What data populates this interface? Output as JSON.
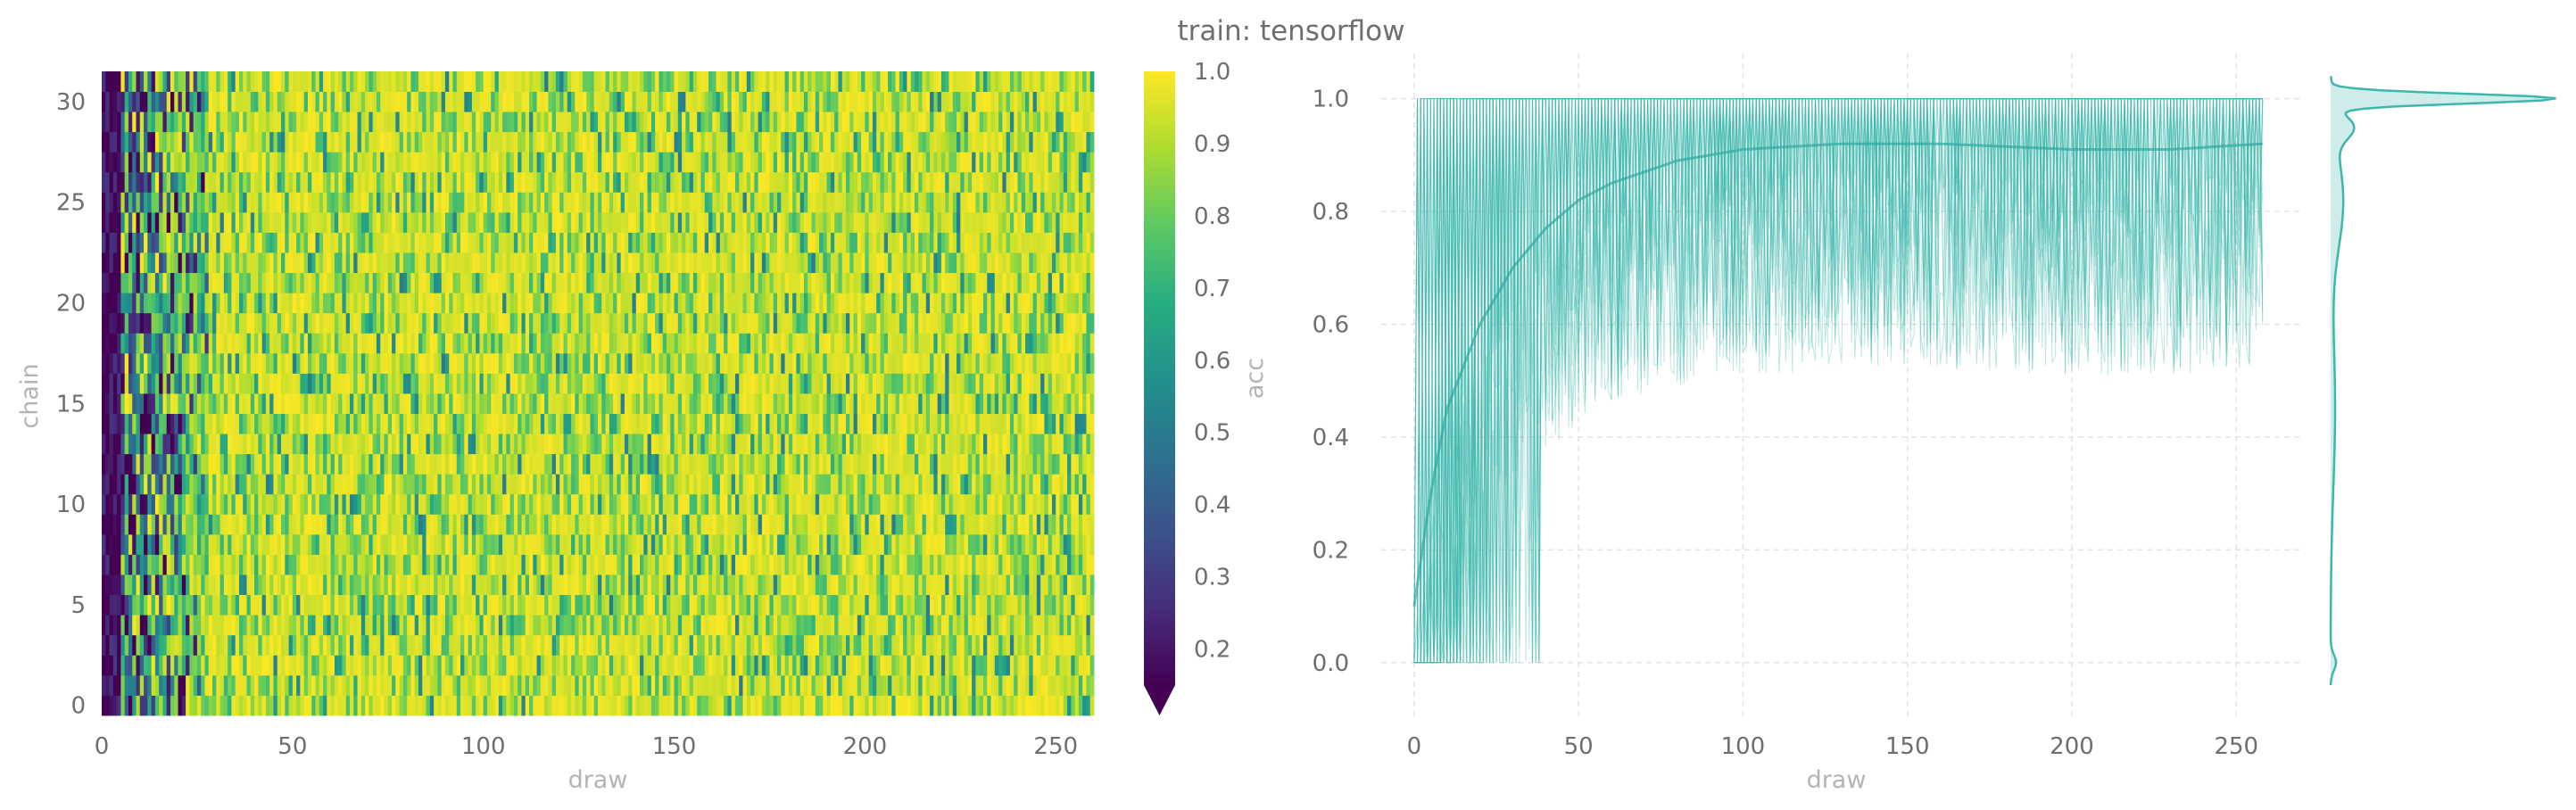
{
  "title": "train: tensorflow",
  "chart_data": [
    {
      "type": "heatmap",
      "xlabel": "draw",
      "ylabel": "chain",
      "xlim": [
        0,
        260
      ],
      "ylim": [
        0,
        32
      ],
      "xticks": [
        0,
        50,
        100,
        150,
        200,
        250
      ],
      "yticks": [
        0,
        5,
        10,
        15,
        20,
        25,
        30
      ],
      "n_chains": 32,
      "n_draws": 260,
      "colormap": "viridis",
      "colorbar": {
        "label": "acc",
        "range": [
          0.15,
          1.0
        ],
        "ticks": [
          0.2,
          0.3,
          0.4,
          0.5,
          0.6,
          0.7,
          0.8,
          0.9,
          1.0
        ],
        "extend": "min"
      },
      "description_of_values": {
        "early_draws_0_to_25": "mostly low (about 0.1-0.5)",
        "later_draws": "mostly high (about 0.7-1.0)"
      }
    },
    {
      "type": "line",
      "xlabel": "draw",
      "ylabel": "",
      "xlim": [
        -10,
        270
      ],
      "ylim": [
        -0.1,
        1.08
      ],
      "xticks": [
        0,
        50,
        100,
        150,
        200,
        250
      ],
      "yticks": [
        0.0,
        0.2,
        0.4,
        0.6,
        0.8,
        1.0
      ],
      "n_series": 32,
      "color": "#3cb7ad",
      "grid": true,
      "mean_curve": {
        "x": [
          0,
          5,
          10,
          20,
          30,
          40,
          50,
          60,
          80,
          100,
          130,
          160,
          200,
          230,
          258
        ],
        "y": [
          0.1,
          0.3,
          0.45,
          0.6,
          0.7,
          0.77,
          0.82,
          0.85,
          0.89,
          0.91,
          0.92,
          0.92,
          0.91,
          0.91,
          0.92
        ]
      },
      "marginal": {
        "type": "kde",
        "orientation": "horizontal",
        "mode": 1.0
      }
    }
  ]
}
